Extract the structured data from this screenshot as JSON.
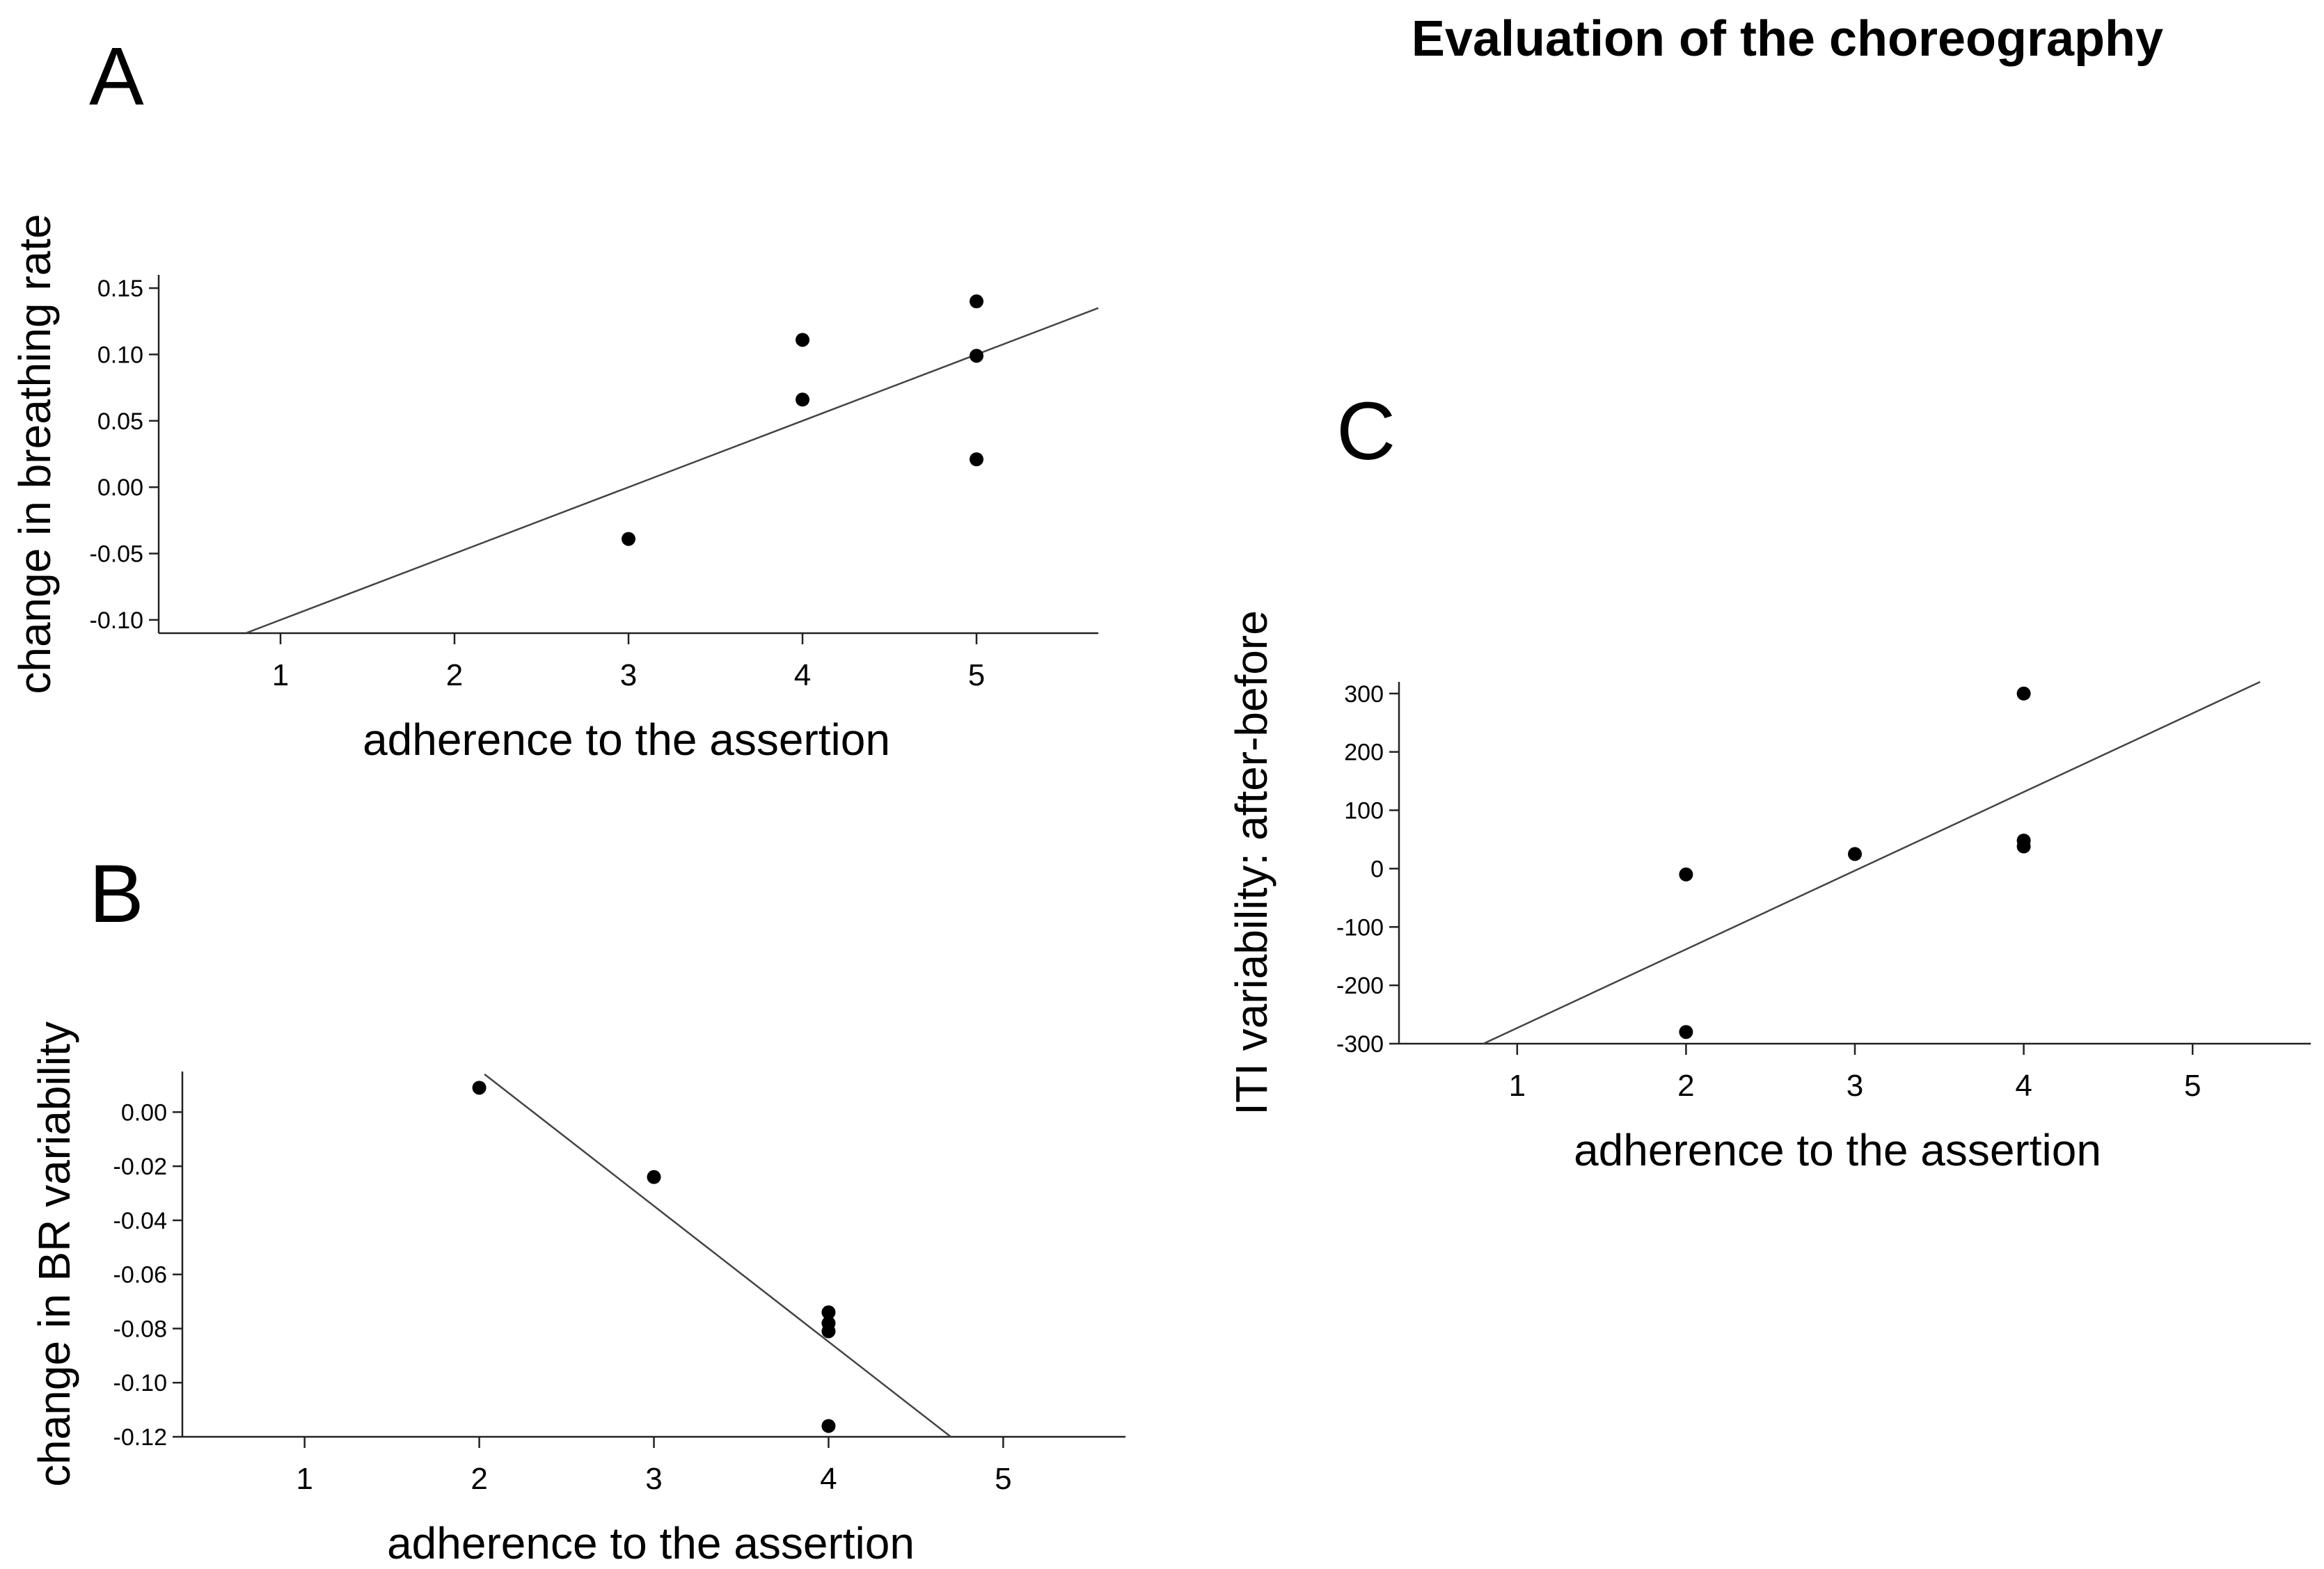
{
  "title": "Evaluation of the choreography",
  "chart_data": [
    {
      "panel": "A",
      "type": "scatter",
      "xlabel": "adherence to the assertion",
      "ylabel": "change in breathing rate",
      "xlim": [
        0.3,
        5.7
      ],
      "ylim": [
        -0.11,
        0.16
      ],
      "xticks": [
        1,
        2,
        3,
        4,
        5
      ],
      "xtick_labels": [
        "1",
        "2",
        "3",
        "4",
        "5"
      ],
      "yticks": [
        -0.1,
        -0.05,
        0.0,
        0.05,
        0.1,
        0.15
      ],
      "ytick_labels": [
        "-0.10",
        "-0.05",
        "0.00",
        "0.05",
        "0.10",
        "0.15"
      ],
      "x": [
        3,
        4,
        4,
        5,
        5,
        5
      ],
      "y": [
        -0.039,
        0.066,
        0.111,
        0.14,
        0.099,
        0.021
      ],
      "fit_line": {
        "x": [
          0.8,
          5.7
        ],
        "y": [
          -0.11,
          0.135
        ]
      }
    },
    {
      "panel": "B",
      "type": "scatter",
      "xlabel": "adherence to the assertion",
      "ylabel": "change in BR variability",
      "xlim": [
        0.3,
        5.7
      ],
      "ylim": [
        -0.12,
        0.015
      ],
      "xticks": [
        1,
        2,
        3,
        4,
        5
      ],
      "xtick_labels": [
        "1",
        "2",
        "3",
        "4",
        "5"
      ],
      "yticks": [
        0.0,
        -0.02,
        -0.04,
        -0.06,
        -0.08,
        -0.1,
        -0.12
      ],
      "ytick_labels": [
        "0.00",
        "-0.02",
        "-0.04",
        "-0.06",
        "-0.08",
        "-0.10",
        "-0.12"
      ],
      "x": [
        2,
        3,
        4,
        4,
        4,
        4
      ],
      "y": [
        0.009,
        -0.024,
        -0.074,
        -0.078,
        -0.081,
        -0.116
      ],
      "fit_line": {
        "x": [
          2.03,
          4.7
        ],
        "y": [
          0.014,
          -0.12
        ]
      }
    },
    {
      "panel": "C",
      "type": "scatter",
      "xlabel": "adherence to the assertion",
      "ylabel": "ITI variability: after-before",
      "xlim": [
        0.3,
        5.7
      ],
      "ylim": [
        -300,
        320
      ],
      "xticks": [
        1,
        2,
        3,
        4,
        5
      ],
      "xtick_labels": [
        "1",
        "2",
        "3",
        "4",
        "5"
      ],
      "yticks": [
        300,
        200,
        100,
        0,
        -100,
        -200,
        -300
      ],
      "ytick_labels": [
        "300",
        "200",
        "100",
        "0",
        "-100",
        "-200",
        "-300"
      ],
      "x": [
        2,
        2,
        3,
        4,
        4,
        4
      ],
      "y": [
        -10,
        -280,
        25,
        300,
        48,
        38
      ],
      "fit_line": {
        "x": [
          0.8,
          5.4
        ],
        "y": [
          -300,
          320
        ]
      }
    }
  ]
}
